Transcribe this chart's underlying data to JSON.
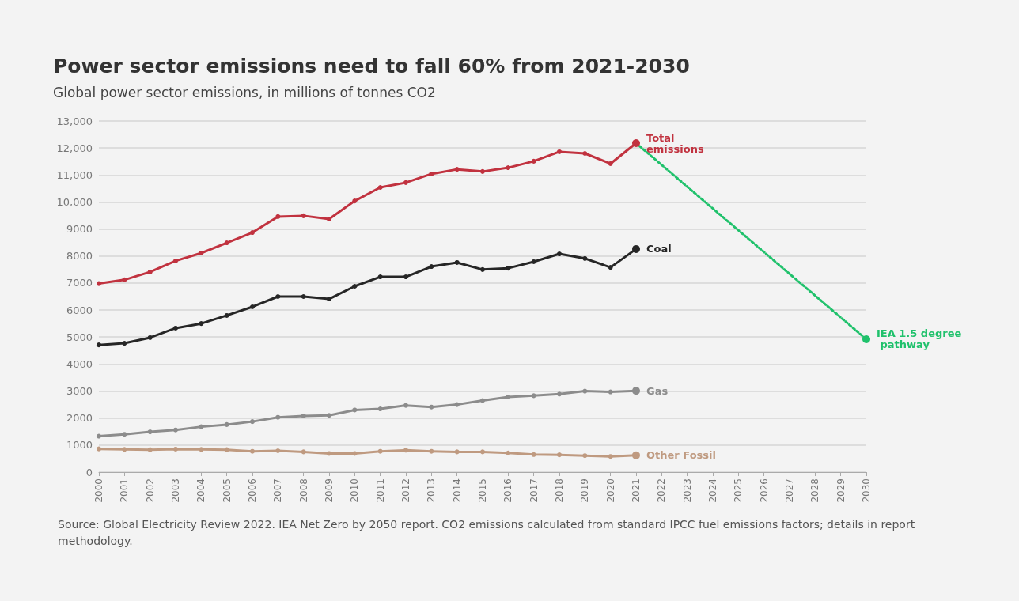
{
  "chart_data": {
    "type": "line",
    "title": "Power sector emissions need to fall 60% from 2021-2030",
    "subtitle": "Global power sector emissions, in millions of tonnes CO2",
    "categories": [
      "2000",
      "2001",
      "2002",
      "2003",
      "2004",
      "2005",
      "2006",
      "2007",
      "2008",
      "2009",
      "2010",
      "2011",
      "2012",
      "2013",
      "2014",
      "2015",
      "2016",
      "2017",
      "2018",
      "2019",
      "2020",
      "2021",
      "2022",
      "2023",
      "2024",
      "2025",
      "2026",
      "2027",
      "2028",
      "2029",
      "2030"
    ],
    "series": [
      {
        "name": "IEA 1.5 degree pathway",
        "color": "#1fc16b",
        "line_style": "dotted",
        "values": [
          null,
          null,
          null,
          null,
          null,
          null,
          null,
          null,
          null,
          null,
          null,
          null,
          null,
          null,
          null,
          null,
          null,
          null,
          null,
          null,
          null,
          12180,
          null,
          null,
          null,
          null,
          null,
          null,
          null,
          null,
          4920
        ]
      },
      {
        "name": "Total emissions",
        "color": "#c1323f",
        "values": [
          6980,
          7120,
          7410,
          7820,
          8110,
          8490,
          8870,
          9460,
          9490,
          9370,
          10040,
          10540,
          10720,
          11040,
          11210,
          11130,
          11270,
          11510,
          11860,
          11800,
          11420,
          12180,
          null,
          null,
          null,
          null,
          null,
          null,
          null,
          null,
          null
        ]
      },
      {
        "name": "Coal",
        "color": "#262626",
        "values": [
          4710,
          4770,
          4980,
          5330,
          5500,
          5800,
          6120,
          6500,
          6500,
          6410,
          6880,
          7230,
          7230,
          7610,
          7760,
          7500,
          7550,
          7790,
          8080,
          7910,
          7580,
          8260,
          null,
          null,
          null,
          null,
          null,
          null,
          null,
          null,
          null
        ]
      },
      {
        "name": "Gas",
        "color": "#8c8c8c",
        "values": [
          1330,
          1400,
          1490,
          1560,
          1680,
          1760,
          1870,
          2030,
          2080,
          2100,
          2300,
          2340,
          2470,
          2410,
          2500,
          2650,
          2780,
          2830,
          2890,
          3000,
          2970,
          3010,
          null,
          null,
          null,
          null,
          null,
          null,
          null,
          null,
          null
        ]
      },
      {
        "name": "Other Fossil",
        "color": "#bf9a80",
        "values": [
          860,
          840,
          830,
          850,
          840,
          830,
          770,
          790,
          750,
          690,
          690,
          770,
          810,
          770,
          750,
          750,
          710,
          650,
          640,
          610,
          580,
          620,
          null,
          null,
          null,
          null,
          null,
          null,
          null,
          null,
          null
        ]
      }
    ],
    "ylim": [
      0,
      13000
    ],
    "yticks": [
      0,
      1000,
      2000,
      3000,
      4000,
      5000,
      6000,
      7000,
      8000,
      9000,
      {
        "value": 10000,
        "label": "10,000"
      },
      {
        "value": 11000,
        "label": "11,000"
      },
      {
        "value": 12000,
        "label": "12,000"
      },
      {
        "value": 13000,
        "label": "13,000"
      }
    ],
    "grid": "y",
    "legend": false,
    "marker": "circle",
    "line_style": "solid",
    "annotations": [
      "Source: Global Electricity Review 2022. IEA Net Zero by 2050 report. CO2 emissions calculated from standard IPCC fuel emissions factors; details in report methodology."
    ]
  }
}
